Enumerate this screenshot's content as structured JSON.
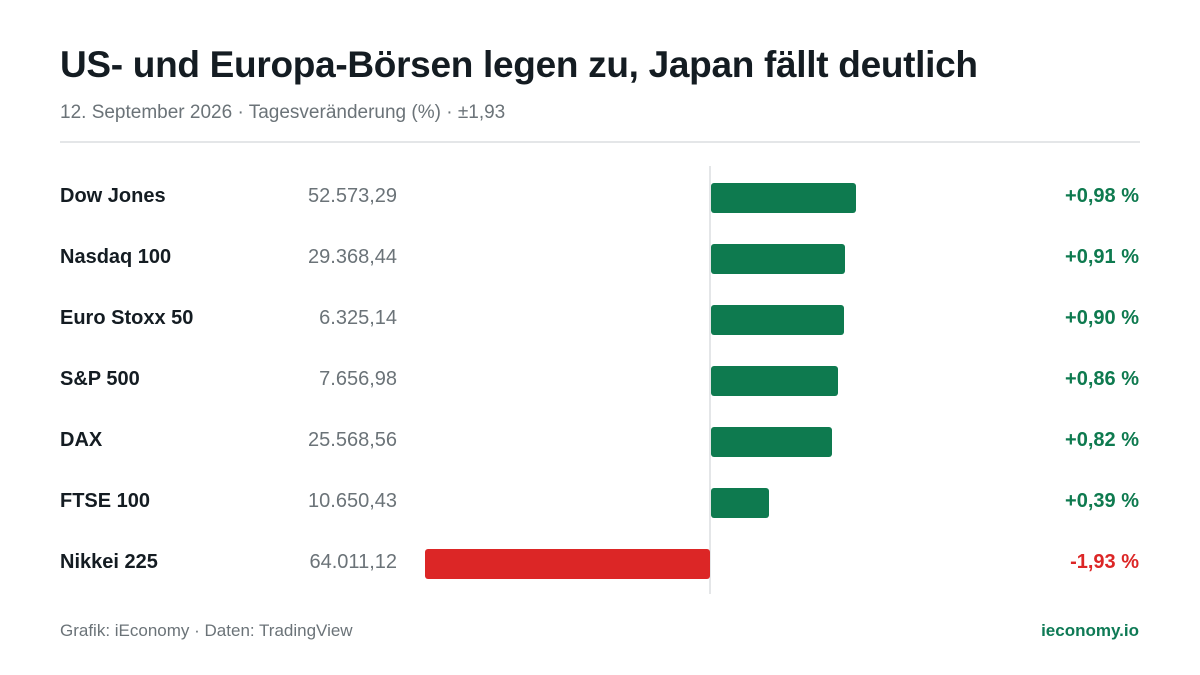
{
  "header": {
    "title": "US- und Europa-Börsen legen zu, Japan fällt deutlich",
    "subtitle": "12. September 2026 · Tagesveränderung (%) · ±1,93"
  },
  "footer": {
    "credit": "Grafik: iEconomy · Daten: TradingView",
    "brand": "ieconomy.io"
  },
  "colors": {
    "positive": "#0e7a4f",
    "negative": "#dc2626",
    "brand": "#0e7a55"
  },
  "chart_data": {
    "type": "bar",
    "orientation": "horizontal",
    "title": "US- und Europa-Börsen legen zu, Japan fällt deutlich",
    "subtitle": "12. September 2026 · Tagesveränderung (%) · ±1,93",
    "xlim": [
      -1.93,
      1.93
    ],
    "grid": false,
    "categories": [
      "Dow Jones",
      "Nasdaq 100",
      "Euro Stoxx 50",
      "S&P 500",
      "DAX",
      "FTSE 100",
      "Nikkei 225"
    ],
    "levels": [
      "52.573,29",
      "29.368,44",
      "6.325,14",
      "7.656,98",
      "25.568,56",
      "10.650,43",
      "64.011,12"
    ],
    "values": [
      0.98,
      0.91,
      0.9,
      0.86,
      0.82,
      0.39,
      -1.93
    ],
    "labels": [
      "+0,98 %",
      "+0,91 %",
      "+0,90 %",
      "+0,86 %",
      "+0,82 %",
      "+0,39 %",
      "-1,93 %"
    ]
  }
}
